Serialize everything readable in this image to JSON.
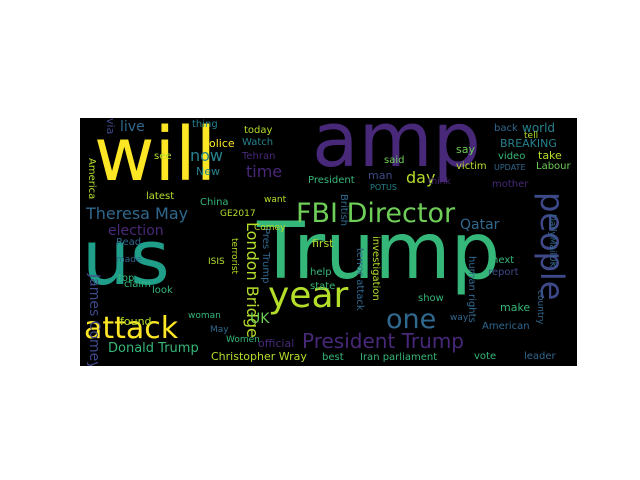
{
  "colors": {
    "background": "#000000",
    "page": "#ffffff",
    "yellow": "#fde725",
    "lime": "#b5de2b",
    "green": "#6ece58",
    "teal": "#35b779",
    "sea": "#1f9e89",
    "cyan": "#26828e",
    "steel": "#31688e",
    "blue": "#3e4989",
    "indigo": "#482878",
    "purple": "#440154"
  },
  "words": [
    {
      "text": "Trump",
      "color": "teal"
    },
    {
      "text": "amp",
      "color": "indigo"
    },
    {
      "text": "will",
      "color": "yellow"
    },
    {
      "text": "us",
      "color": "sea"
    },
    {
      "text": "FBI Director",
      "color": "green"
    },
    {
      "text": "year",
      "color": "lime"
    },
    {
      "text": "people",
      "color": "blue"
    },
    {
      "text": "attack",
      "color": "yellow"
    },
    {
      "text": "one",
      "color": "steel"
    },
    {
      "text": "President Trump",
      "color": "indigo"
    },
    {
      "text": "Theresa May",
      "color": "steel"
    },
    {
      "text": "London Bridge",
      "color": "lime"
    },
    {
      "text": "James Comey",
      "color": "blue"
    },
    {
      "text": "Donald Trump",
      "color": "teal"
    },
    {
      "text": "Christopher Wray",
      "color": "lime"
    },
    {
      "text": "election",
      "color": "indigo"
    },
    {
      "text": "Qatar",
      "color": "steel"
    },
    {
      "text": "now",
      "color": "cyan"
    },
    {
      "text": "live",
      "color": "steel"
    },
    {
      "text": "time",
      "color": "indigo"
    },
    {
      "text": "day",
      "color": "lime"
    },
    {
      "text": "UK",
      "color": "green"
    },
    {
      "text": "world",
      "color": "cyan"
    },
    {
      "text": "BREAKING",
      "color": "cyan"
    },
    {
      "text": "take",
      "color": "lime"
    },
    {
      "text": "Labour",
      "color": "green"
    },
    {
      "text": "video",
      "color": "teal"
    },
    {
      "text": "tell",
      "color": "lime"
    },
    {
      "text": "victim",
      "color": "lime"
    },
    {
      "text": "say",
      "color": "green"
    },
    {
      "text": "mother",
      "color": "indigo"
    },
    {
      "text": "back",
      "color": "steel"
    },
    {
      "text": "UPDATE",
      "color": "steel"
    },
    {
      "text": "next",
      "color": "teal"
    },
    {
      "text": "report",
      "color": "blue"
    },
    {
      "text": "make",
      "color": "teal"
    },
    {
      "text": "American",
      "color": "steel"
    },
    {
      "text": "leader",
      "color": "steel"
    },
    {
      "text": "vote",
      "color": "teal"
    },
    {
      "text": "show",
      "color": "teal"
    },
    {
      "text": "way",
      "color": "steel"
    },
    {
      "text": "Iran parliament",
      "color": "teal"
    },
    {
      "text": "best",
      "color": "teal"
    },
    {
      "text": "official",
      "color": "indigo"
    },
    {
      "text": "woman",
      "color": "teal"
    },
    {
      "text": "found",
      "color": "lime"
    },
    {
      "text": "claim",
      "color": "teal"
    },
    {
      "text": "look",
      "color": "teal"
    },
    {
      "text": "made",
      "color": "steel"
    },
    {
      "text": "top",
      "color": "teal"
    },
    {
      "text": "Read",
      "color": "steel"
    },
    {
      "text": "ISIS",
      "color": "lime"
    },
    {
      "text": "terrorist",
      "color": "lime"
    },
    {
      "text": "Pres Trump",
      "color": "steel"
    },
    {
      "text": "police",
      "color": "yellow"
    },
    {
      "text": "Watch",
      "color": "cyan"
    },
    {
      "text": "Tehran",
      "color": "indigo"
    },
    {
      "text": "today",
      "color": "lime"
    },
    {
      "text": "New",
      "color": "cyan"
    },
    {
      "text": "see",
      "color": "lime"
    },
    {
      "text": "latest",
      "color": "lime"
    },
    {
      "text": "China",
      "color": "teal"
    },
    {
      "text": "GE2017",
      "color": "lime"
    },
    {
      "text": "Comey",
      "color": "lime"
    },
    {
      "text": "want",
      "color": "lime"
    },
    {
      "text": "first",
      "color": "lime"
    },
    {
      "text": "help",
      "color": "teal"
    },
    {
      "text": "state",
      "color": "teal"
    },
    {
      "text": "investigation",
      "color": "lime"
    },
    {
      "text": "terror attack",
      "color": "steel"
    },
    {
      "text": "human rights",
      "color": "steel"
    },
    {
      "text": "British",
      "color": "steel"
    },
    {
      "text": "President",
      "color": "teal"
    },
    {
      "text": "man",
      "color": "blue"
    },
    {
      "text": "said",
      "color": "green"
    },
    {
      "text": "thing",
      "color": "cyan"
    },
    {
      "text": "think",
      "color": "indigo"
    },
    {
      "text": "POTUS",
      "color": "cyan"
    },
    {
      "text": "America",
      "color": "lime"
    },
    {
      "text": "May",
      "color": "steel"
    },
    {
      "text": "Women",
      "color": "teal"
    },
    {
      "text": "country",
      "color": "steel"
    },
    {
      "text": "DailyMailUK",
      "color": "steel"
    },
    {
      "text": "via",
      "color": "blue"
    }
  ]
}
